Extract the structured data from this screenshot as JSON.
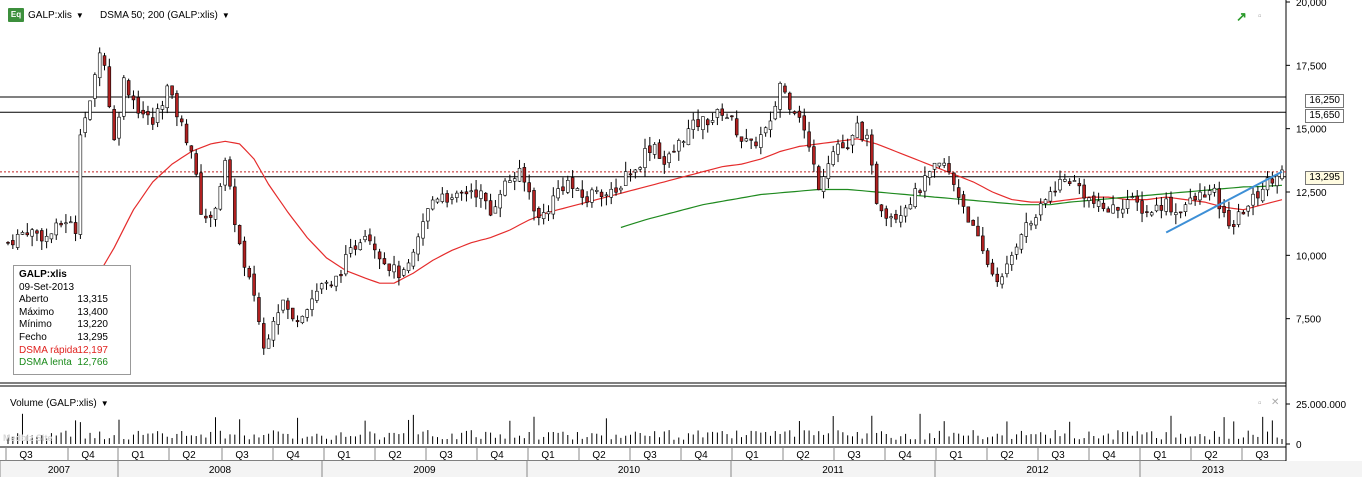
{
  "header": {
    "symbol_icon": "Eq",
    "symbol": "GALP:xlis",
    "indicator": "DSMA 50; 200 (GALP:xlis)",
    "volume_label": "Volume (GALP:xlis)"
  },
  "info_box": {
    "title": "GALP:xlis",
    "date": "09-Set-2013",
    "rows": [
      {
        "label": "Aberto",
        "value": "13,315"
      },
      {
        "label": "Máximo",
        "value": "13,400"
      },
      {
        "label": "Mínimo",
        "value": "13,220"
      },
      {
        "label": "Fecho",
        "value": "13,295"
      },
      {
        "label": "DSMA rápida",
        "value": "12,197"
      },
      {
        "label": "DSMA lenta",
        "value": "12,766"
      }
    ]
  },
  "price_labels": {
    "line1": "16,250",
    "line2": "15,650",
    "current": "13,295"
  },
  "watermark": "Medbiz Site",
  "colors": {
    "up": "#ffffff",
    "down": "#b02020",
    "fast_ma": "#e52c2c",
    "slow_ma": "#1f8a1f",
    "trendline": "#3d8fd6"
  },
  "chart_data": {
    "type": "candlestick",
    "y_axis": {
      "ticks": [
        "20,000",
        "17,500",
        "15,000",
        "12,500",
        "10,000",
        "7,500"
      ],
      "values": [
        20000,
        17500,
        15000,
        12500,
        10000,
        7500
      ],
      "range": [
        5000,
        20000
      ]
    },
    "volume_axis": {
      "ticks": [
        "25.000.000",
        "0"
      ],
      "values": [
        25000000,
        0
      ]
    },
    "quarters": [
      "Q3",
      "Q4",
      "Q1",
      "Q2",
      "Q3",
      "Q4",
      "Q1",
      "Q2",
      "Q3",
      "Q4",
      "Q1",
      "Q2",
      "Q3",
      "Q4",
      "Q1",
      "Q2",
      "Q3",
      "Q4",
      "Q1",
      "Q2",
      "Q3",
      "Q4",
      "Q1",
      "Q2",
      "Q3"
    ],
    "years": [
      "2007",
      "2008",
      "2009",
      "2010",
      "2011",
      "2012",
      "2013"
    ],
    "close_path": [
      [
        0,
        10500
      ],
      [
        4,
        11000
      ],
      [
        8,
        10700
      ],
      [
        12,
        11400
      ],
      [
        14,
        11000
      ],
      [
        15,
        15000
      ],
      [
        17,
        15900
      ],
      [
        19,
        18200
      ],
      [
        20,
        17500
      ],
      [
        22,
        14500
      ],
      [
        24,
        16900
      ],
      [
        27,
        15800
      ],
      [
        30,
        15200
      ],
      [
        33,
        16600
      ],
      [
        36,
        15100
      ],
      [
        38,
        14200
      ],
      [
        40,
        11800
      ],
      [
        42,
        11300
      ],
      [
        45,
        13600
      ],
      [
        47,
        11400
      ],
      [
        49,
        9400
      ],
      [
        51,
        8500
      ],
      [
        53,
        6300
      ],
      [
        55,
        7600
      ],
      [
        57,
        8200
      ],
      [
        59,
        7400
      ],
      [
        61,
        7800
      ],
      [
        63,
        8300
      ],
      [
        65,
        8900
      ],
      [
        67,
        8700
      ],
      [
        70,
        9800
      ],
      [
        72,
        10400
      ],
      [
        74,
        11000
      ],
      [
        76,
        10400
      ],
      [
        78,
        9800
      ],
      [
        80,
        9400
      ],
      [
        82,
        9200
      ],
      [
        84,
        9900
      ],
      [
        86,
        11300
      ],
      [
        88,
        12200
      ],
      [
        90,
        12500
      ],
      [
        92,
        12100
      ],
      [
        94,
        12400
      ],
      [
        96,
        12600
      ],
      [
        98,
        12400
      ],
      [
        100,
        11600
      ],
      [
        102,
        12600
      ],
      [
        104,
        13000
      ],
      [
        106,
        13200
      ],
      [
        108,
        12500
      ],
      [
        110,
        11400
      ],
      [
        112,
        11900
      ],
      [
        114,
        12600
      ],
      [
        116,
        12900
      ],
      [
        118,
        12400
      ],
      [
        120,
        12200
      ],
      [
        122,
        12700
      ],
      [
        124,
        12400
      ],
      [
        126,
        12400
      ],
      [
        128,
        13300
      ],
      [
        130,
        13300
      ],
      [
        132,
        14100
      ],
      [
        134,
        14400
      ],
      [
        136,
        13600
      ],
      [
        138,
        14100
      ],
      [
        140,
        14700
      ],
      [
        142,
        15100
      ],
      [
        144,
        15300
      ],
      [
        146,
        15400
      ],
      [
        148,
        15700
      ],
      [
        150,
        15300
      ],
      [
        152,
        14600
      ],
      [
        154,
        14300
      ],
      [
        156,
        14700
      ],
      [
        158,
        15100
      ],
      [
        160,
        16800
      ],
      [
        162,
        16000
      ],
      [
        164,
        15600
      ],
      [
        166,
        14200
      ],
      [
        168,
        12800
      ],
      [
        170,
        13800
      ],
      [
        172,
        14400
      ],
      [
        174,
        14100
      ],
      [
        176,
        15100
      ],
      [
        178,
        14500
      ],
      [
        180,
        12200
      ],
      [
        182,
        11700
      ],
      [
        184,
        11600
      ],
      [
        186,
        12000
      ],
      [
        188,
        12400
      ],
      [
        190,
        12900
      ],
      [
        192,
        13400
      ],
      [
        194,
        13600
      ],
      [
        196,
        12800
      ],
      [
        198,
        12000
      ],
      [
        200,
        11000
      ],
      [
        202,
        10100
      ],
      [
        204,
        9300
      ],
      [
        206,
        9000
      ],
      [
        208,
        10000
      ],
      [
        210,
        11000
      ],
      [
        212,
        11300
      ],
      [
        214,
        11800
      ],
      [
        216,
        12500
      ],
      [
        218,
        12900
      ],
      [
        220,
        13000
      ],
      [
        222,
        12700
      ],
      [
        224,
        12200
      ],
      [
        226,
        11900
      ],
      [
        228,
        11800
      ],
      [
        230,
        11900
      ],
      [
        232,
        12200
      ],
      [
        234,
        12000
      ],
      [
        236,
        11700
      ],
      [
        238,
        11900
      ],
      [
        240,
        12100
      ],
      [
        242,
        11700
      ],
      [
        244,
        12000
      ],
      [
        246,
        12200
      ],
      [
        248,
        12500
      ],
      [
        250,
        12400
      ],
      [
        252,
        11500
      ],
      [
        254,
        11200
      ],
      [
        256,
        11800
      ],
      [
        258,
        12200
      ],
      [
        260,
        12700
      ],
      [
        262,
        13100
      ],
      [
        263,
        13295
      ]
    ],
    "fast_ma_path": [
      [
        18,
        9000
      ],
      [
        22,
        10300
      ],
      [
        26,
        11800
      ],
      [
        30,
        12900
      ],
      [
        34,
        13600
      ],
      [
        38,
        14100
      ],
      [
        42,
        14400
      ],
      [
        45,
        14500
      ],
      [
        48,
        14400
      ],
      [
        51,
        13800
      ],
      [
        54,
        12800
      ],
      [
        58,
        11700
      ],
      [
        62,
        10700
      ],
      [
        66,
        9900
      ],
      [
        70,
        9400
      ],
      [
        74,
        9100
      ],
      [
        77,
        8900
      ],
      [
        80,
        8900
      ],
      [
        84,
        9300
      ],
      [
        88,
        9800
      ],
      [
        92,
        10200
      ],
      [
        96,
        10500
      ],
      [
        100,
        10700
      ],
      [
        104,
        11000
      ],
      [
        108,
        11400
      ],
      [
        112,
        11700
      ],
      [
        116,
        11900
      ],
      [
        120,
        12100
      ],
      [
        124,
        12300
      ],
      [
        128,
        12500
      ],
      [
        132,
        12700
      ],
      [
        136,
        12900
      ],
      [
        140,
        13100
      ],
      [
        144,
        13300
      ],
      [
        148,
        13500
      ],
      [
        152,
        13600
      ],
      [
        156,
        13800
      ],
      [
        160,
        14100
      ],
      [
        164,
        14300
      ],
      [
        168,
        14400
      ],
      [
        172,
        14500
      ],
      [
        176,
        14600
      ],
      [
        180,
        14400
      ],
      [
        184,
        14100
      ],
      [
        188,
        13800
      ],
      [
        192,
        13500
      ],
      [
        196,
        13200
      ],
      [
        200,
        12900
      ],
      [
        204,
        12500
      ],
      [
        208,
        12200
      ],
      [
        212,
        12100
      ],
      [
        216,
        12100
      ],
      [
        220,
        12200
      ],
      [
        224,
        12300
      ],
      [
        228,
        12300
      ],
      [
        232,
        12200
      ],
      [
        236,
        12200
      ],
      [
        240,
        12300
      ],
      [
        244,
        12200
      ],
      [
        248,
        12100
      ],
      [
        252,
        11900
      ],
      [
        256,
        11800
      ],
      [
        260,
        12000
      ],
      [
        264,
        12197
      ]
    ],
    "slow_ma_path": [
      [
        127,
        11100
      ],
      [
        132,
        11400
      ],
      [
        138,
        11700
      ],
      [
        144,
        12000
      ],
      [
        150,
        12200
      ],
      [
        156,
        12400
      ],
      [
        162,
        12500
      ],
      [
        168,
        12600
      ],
      [
        174,
        12600
      ],
      [
        180,
        12500
      ],
      [
        186,
        12400
      ],
      [
        192,
        12300
      ],
      [
        198,
        12200
      ],
      [
        204,
        12100
      ],
      [
        210,
        12000
      ],
      [
        216,
        12000
      ],
      [
        220,
        12100
      ],
      [
        226,
        12200
      ],
      [
        232,
        12300
      ],
      [
        238,
        12400
      ],
      [
        244,
        12500
      ],
      [
        250,
        12600
      ],
      [
        256,
        12700
      ],
      [
        260,
        12720
      ],
      [
        264,
        12766
      ]
    ],
    "h_lines": [
      16250,
      15650,
      13295,
      13100
    ],
    "trendline": [
      [
        240,
        10900
      ],
      [
        264,
        13300
      ]
    ]
  }
}
